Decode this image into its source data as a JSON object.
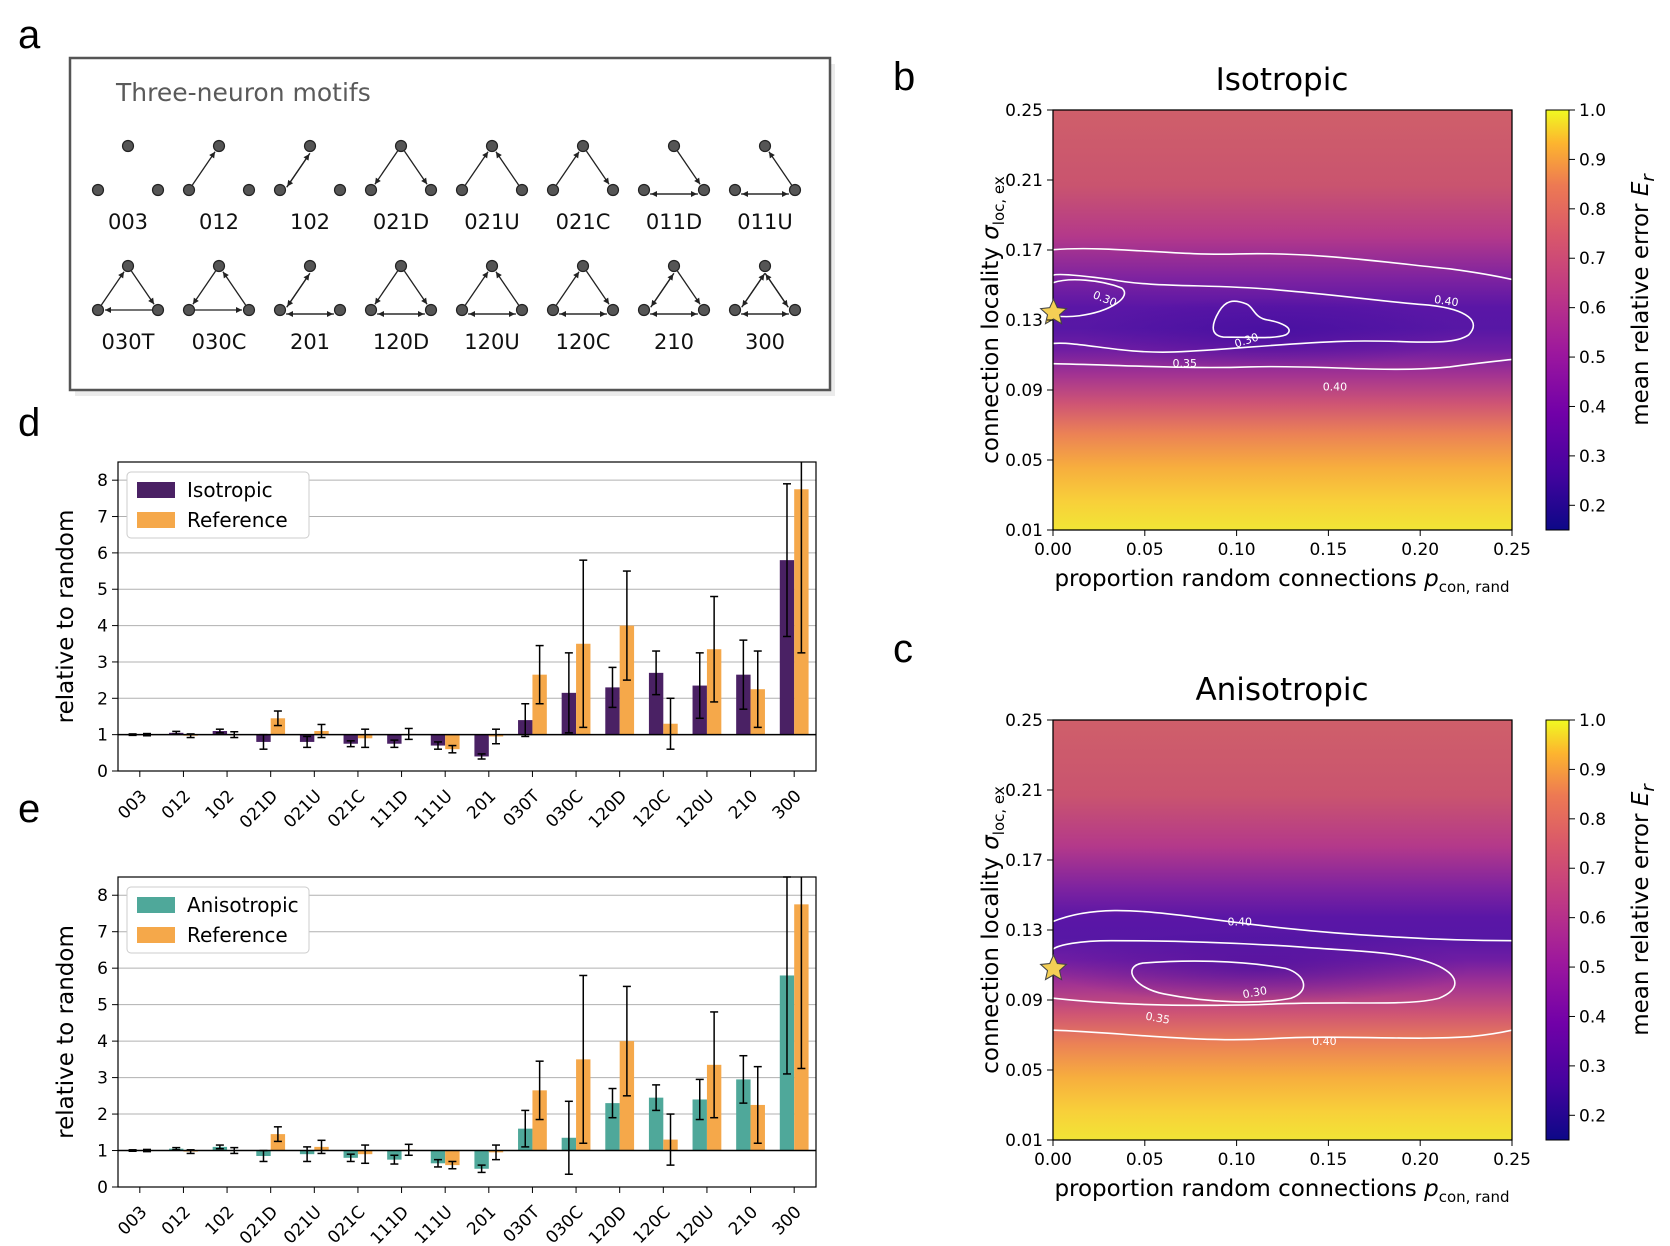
{
  "panel_letters": {
    "a": "a",
    "b": "b",
    "c": "c",
    "d": "d",
    "e": "e"
  },
  "motif_box": {
    "title": "Three-neuron motifs",
    "row1": [
      "003",
      "012",
      "102",
      "021D",
      "021U",
      "021C",
      "011D",
      "011U"
    ],
    "row2": [
      "030T",
      "030C",
      "201",
      "120D",
      "120U",
      "120C",
      "210",
      "300"
    ]
  },
  "colors": {
    "isotropic": "#4a2164",
    "anisotropic": "#4fa89a",
    "reference": "#f5a84a",
    "star": "#f4cf55",
    "contour": "#ffffff"
  },
  "chart_data": [
    {
      "id": "b",
      "type": "heatmap",
      "title": "Isotropic",
      "xlabel": "proportion random connections p_con,rand",
      "ylabel": "connection locality σ_loc,ex",
      "x_ticks": [
        "0.00",
        "0.05",
        "0.10",
        "0.15",
        "0.20",
        "0.25"
      ],
      "y_ticks": [
        "0.01",
        "0.05",
        "0.09",
        "0.13",
        "0.17",
        "0.21",
        "0.25"
      ],
      "xlim": [
        0.0,
        0.25
      ],
      "ylim": [
        0.01,
        0.25
      ],
      "colorbar": {
        "label": "mean relative error E_r",
        "ticks": [
          "0.2",
          "0.3",
          "0.4",
          "0.5",
          "0.6",
          "0.7",
          "0.8",
          "0.9",
          "1.0"
        ],
        "range": [
          0.15,
          1.0
        ],
        "colormap": "plasma"
      },
      "contour_levels": [
        "0.30",
        "0.30",
        "0.35",
        "0.40",
        "0.40"
      ],
      "error_profile_by_sigma": [
        [
          0.01,
          0.95
        ],
        [
          0.05,
          0.85
        ],
        [
          0.09,
          0.6
        ],
        [
          0.11,
          0.45
        ],
        [
          0.13,
          0.33
        ],
        [
          0.15,
          0.34
        ],
        [
          0.17,
          0.45
        ],
        [
          0.21,
          0.58
        ],
        [
          0.25,
          0.62
        ]
      ],
      "star": {
        "p_con_rand": 0.003,
        "sigma": 0.14
      }
    },
    {
      "id": "c",
      "type": "heatmap",
      "title": "Anisotropic",
      "xlabel": "proportion random connections p_con,rand",
      "ylabel": "connection locality σ_loc,ex",
      "x_ticks": [
        "0.00",
        "0.05",
        "0.10",
        "0.15",
        "0.20",
        "0.25"
      ],
      "y_ticks": [
        "0.01",
        "0.05",
        "0.09",
        "0.13",
        "0.17",
        "0.21",
        "0.25"
      ],
      "xlim": [
        0.0,
        0.25
      ],
      "ylim": [
        0.01,
        0.25
      ],
      "colorbar": {
        "label": "mean relative error E_r",
        "ticks": [
          "0.2",
          "0.3",
          "0.4",
          "0.5",
          "0.6",
          "0.7",
          "0.8",
          "0.9",
          "1.0"
        ],
        "range": [
          0.15,
          1.0
        ],
        "colormap": "plasma"
      },
      "contour_levels": [
        "0.40",
        "0.30",
        "0.35",
        "0.40"
      ],
      "error_profile_by_sigma": [
        [
          0.01,
          0.95
        ],
        [
          0.05,
          0.85
        ],
        [
          0.09,
          0.6
        ],
        [
          0.11,
          0.45
        ],
        [
          0.13,
          0.32
        ],
        [
          0.15,
          0.34
        ],
        [
          0.17,
          0.45
        ],
        [
          0.21,
          0.58
        ],
        [
          0.25,
          0.62
        ]
      ],
      "star": {
        "p_con_rand": 0.003,
        "sigma": 0.14
      }
    },
    {
      "id": "d",
      "type": "bar",
      "ylabel": "relative to random",
      "categories": [
        "003",
        "012",
        "102",
        "021D",
        "021U",
        "021C",
        "111D",
        "111U",
        "201",
        "030T",
        "030C",
        "120D",
        "120C",
        "120U",
        "210",
        "300"
      ],
      "ylim": [
        0,
        8.5
      ],
      "y_ticks": [
        0,
        1,
        2,
        3,
        4,
        5,
        6,
        7,
        8
      ],
      "baseline": 1,
      "legend": "top-left",
      "series": [
        {
          "name": "Isotropic",
          "color": "#4a2164",
          "values": [
            1.0,
            1.05,
            1.1,
            0.8,
            0.8,
            0.75,
            0.75,
            0.7,
            0.4,
            1.4,
            2.15,
            2.3,
            2.7,
            2.35,
            2.65,
            5.8
          ],
          "err": [
            0.02,
            0.04,
            0.05,
            0.2,
            0.15,
            0.08,
            0.1,
            0.1,
            0.07,
            0.45,
            1.1,
            0.55,
            0.6,
            0.9,
            0.95,
            2.1
          ]
        },
        {
          "name": "Reference",
          "color": "#f5a84a",
          "values": [
            1.0,
            0.97,
            1.0,
            1.45,
            1.1,
            0.9,
            1.02,
            0.6,
            0.95,
            2.65,
            3.5,
            4.0,
            1.3,
            3.35,
            2.25,
            7.75
          ],
          "err": [
            0.03,
            0.05,
            0.08,
            0.2,
            0.18,
            0.25,
            0.15,
            0.1,
            0.2,
            0.8,
            2.3,
            1.5,
            0.7,
            1.45,
            1.05,
            4.5
          ]
        }
      ]
    },
    {
      "id": "e",
      "type": "bar",
      "ylabel": "relative to random",
      "categories": [
        "003",
        "012",
        "102",
        "021D",
        "021U",
        "021C",
        "111D",
        "111U",
        "201",
        "030T",
        "030C",
        "120D",
        "120C",
        "120U",
        "210",
        "300"
      ],
      "ylim": [
        0,
        8.5
      ],
      "y_ticks": [
        0,
        1,
        2,
        3,
        4,
        5,
        6,
        7,
        8
      ],
      "baseline": 1,
      "legend": "top-left",
      "series": [
        {
          "name": "Anisotropic",
          "color": "#4fa89a",
          "values": [
            1.0,
            1.05,
            1.1,
            0.85,
            0.9,
            0.8,
            0.75,
            0.65,
            0.5,
            1.6,
            1.35,
            2.3,
            2.45,
            2.4,
            2.95,
            5.8
          ],
          "err": [
            0.02,
            0.03,
            0.05,
            0.15,
            0.2,
            0.1,
            0.12,
            0.1,
            0.1,
            0.5,
            1.0,
            0.4,
            0.35,
            0.55,
            0.65,
            2.7
          ]
        },
        {
          "name": "Reference",
          "color": "#f5a84a",
          "values": [
            1.0,
            0.97,
            1.0,
            1.45,
            1.1,
            0.9,
            1.02,
            0.6,
            0.95,
            2.65,
            3.5,
            4.0,
            1.3,
            3.35,
            2.25,
            7.75
          ],
          "err": [
            0.03,
            0.05,
            0.08,
            0.2,
            0.18,
            0.25,
            0.15,
            0.1,
            0.2,
            0.8,
            2.3,
            1.5,
            0.7,
            1.45,
            1.05,
            4.5
          ]
        }
      ]
    }
  ]
}
